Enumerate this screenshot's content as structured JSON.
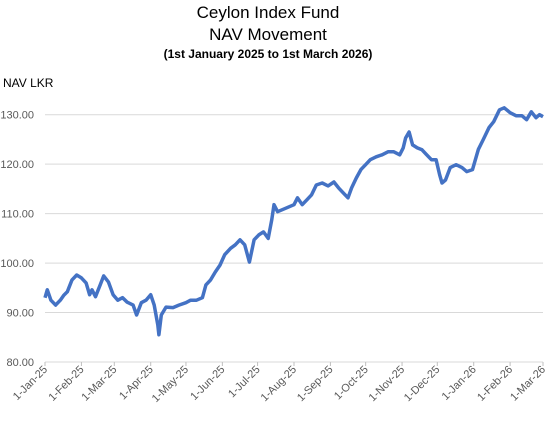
{
  "chart_data": {
    "type": "line",
    "title": "Ceylon Index Fund",
    "subtitle": "NAV Movement",
    "note": "(1st January 2025 to 1st March 2026)",
    "y_label": "NAV LKR",
    "x": [
      "2025-01-01",
      "2025-01-03",
      "2025-01-06",
      "2025-01-10",
      "2025-01-14",
      "2025-01-17",
      "2025-01-20",
      "2025-01-24",
      "2025-01-28",
      "2025-02-01",
      "2025-02-05",
      "2025-02-08",
      "2025-02-10",
      "2025-02-13",
      "2025-02-17",
      "2025-02-20",
      "2025-02-24",
      "2025-02-28",
      "2025-03-04",
      "2025-03-08",
      "2025-03-12",
      "2025-03-17",
      "2025-03-20",
      "2025-03-24",
      "2025-03-28",
      "2025-04-01",
      "2025-04-04",
      "2025-04-07",
      "2025-04-08",
      "2025-04-10",
      "2025-04-14",
      "2025-04-20",
      "2025-04-25",
      "2025-05-01",
      "2025-05-05",
      "2025-05-10",
      "2025-05-15",
      "2025-05-18",
      "2025-05-22",
      "2025-05-26",
      "2025-05-30",
      "2025-06-03",
      "2025-06-08",
      "2025-06-12",
      "2025-06-16",
      "2025-06-20",
      "2025-06-24",
      "2025-06-28",
      "2025-07-02",
      "2025-07-06",
      "2025-07-10",
      "2025-07-13",
      "2025-07-15",
      "2025-07-18",
      "2025-07-22",
      "2025-07-26",
      "2025-08-01",
      "2025-08-04",
      "2025-08-08",
      "2025-08-12",
      "2025-08-16",
      "2025-08-20",
      "2025-08-25",
      "2025-08-30",
      "2025-09-04",
      "2025-09-08",
      "2025-09-12",
      "2025-09-16",
      "2025-09-19",
      "2025-09-23",
      "2025-09-27",
      "2025-10-01",
      "2025-10-05",
      "2025-10-10",
      "2025-10-15",
      "2025-10-20",
      "2025-10-25",
      "2025-10-30",
      "2025-11-02",
      "2025-11-04",
      "2025-11-07",
      "2025-11-10",
      "2025-11-14",
      "2025-11-18",
      "2025-11-22",
      "2025-11-26",
      "2025-11-30",
      "2025-12-03",
      "2025-12-05",
      "2025-12-08",
      "2025-12-12",
      "2025-12-17",
      "2025-12-22",
      "2025-12-26",
      "2025-12-31",
      "2026-01-05",
      "2026-01-09",
      "2026-01-14",
      "2026-01-18",
      "2026-01-23",
      "2026-01-27",
      "2026-02-01",
      "2026-02-06",
      "2026-02-11",
      "2026-02-15",
      "2026-02-19",
      "2026-02-23",
      "2026-02-26",
      "2026-03-01"
    ],
    "series": [
      {
        "name": "NAV",
        "color": "#4472c4",
        "values": [
          93,
          94.6,
          92.5,
          91.5,
          92.5,
          93.5,
          94.2,
          96.6,
          97.6,
          97,
          96,
          93.6,
          94.6,
          93.2,
          95.6,
          97.4,
          96.2,
          93.6,
          92.5,
          93,
          92.1,
          91.5,
          89.5,
          92,
          92.5,
          93.6,
          91.5,
          87.5,
          85.5,
          89.5,
          91.1,
          91,
          91.5,
          92,
          92.5,
          92.5,
          93,
          95.6,
          96.6,
          98.2,
          99.6,
          101.7,
          103,
          103.7,
          104.7,
          103.7,
          100.2,
          104.7,
          105.7,
          106.3,
          105,
          108.7,
          111.8,
          110.4,
          110.8,
          111.2,
          111.8,
          113.2,
          111.8,
          112.8,
          113.8,
          115.8,
          116.2,
          115.6,
          116.4,
          115.2,
          114.2,
          113.2,
          115.2,
          117.2,
          118.9,
          119.9,
          120.9,
          121.5,
          121.9,
          122.5,
          122.5,
          121.9,
          123.3,
          125.3,
          126.5,
          123.9,
          123.3,
          122.9,
          121.9,
          120.9,
          120.9,
          117.9,
          116.2,
          116.8,
          119.3,
          119.9,
          119.3,
          118.5,
          118.9,
          123,
          124.9,
          127.4,
          128.6,
          131,
          131.4,
          130.4,
          129.8,
          129.8,
          129,
          130.6,
          129.4,
          130,
          129.6
        ]
      }
    ],
    "xlim": [
      "2025-01-01",
      "2026-03-01"
    ],
    "xticks": [
      {
        "value": "2025-01-01",
        "label": "1-Jan-25"
      },
      {
        "value": "2025-02-01",
        "label": "1-Feb-25"
      },
      {
        "value": "2025-03-01",
        "label": "1-Mar-25"
      },
      {
        "value": "2025-04-01",
        "label": "1-Apr-25"
      },
      {
        "value": "2025-05-01",
        "label": "1-May-25"
      },
      {
        "value": "2025-06-01",
        "label": "1-Jun-25"
      },
      {
        "value": "2025-07-01",
        "label": "1-Jul-25"
      },
      {
        "value": "2025-08-01",
        "label": "1-Aug-25"
      },
      {
        "value": "2025-09-01",
        "label": "1-Sep-25"
      },
      {
        "value": "2025-10-01",
        "label": "1-Oct-25"
      },
      {
        "value": "2025-11-01",
        "label": "1-Nov-25"
      },
      {
        "value": "2025-12-01",
        "label": "1-Dec-25"
      },
      {
        "value": "2026-01-01",
        "label": "1-Jan-26"
      },
      {
        "value": "2026-02-01",
        "label": "1-Feb-26"
      },
      {
        "value": "2026-03-01",
        "label": "1-Mar-26"
      }
    ],
    "ylim": [
      80,
      135
    ],
    "yticks": [
      {
        "value": 80,
        "label": "80.00"
      },
      {
        "value": 90,
        "label": "90.00"
      },
      {
        "value": 100,
        "label": "100.00"
      },
      {
        "value": 110,
        "label": "110.00"
      },
      {
        "value": 120,
        "label": "120.00"
      },
      {
        "value": 130,
        "label": "130.00"
      }
    ],
    "grid": true
  }
}
